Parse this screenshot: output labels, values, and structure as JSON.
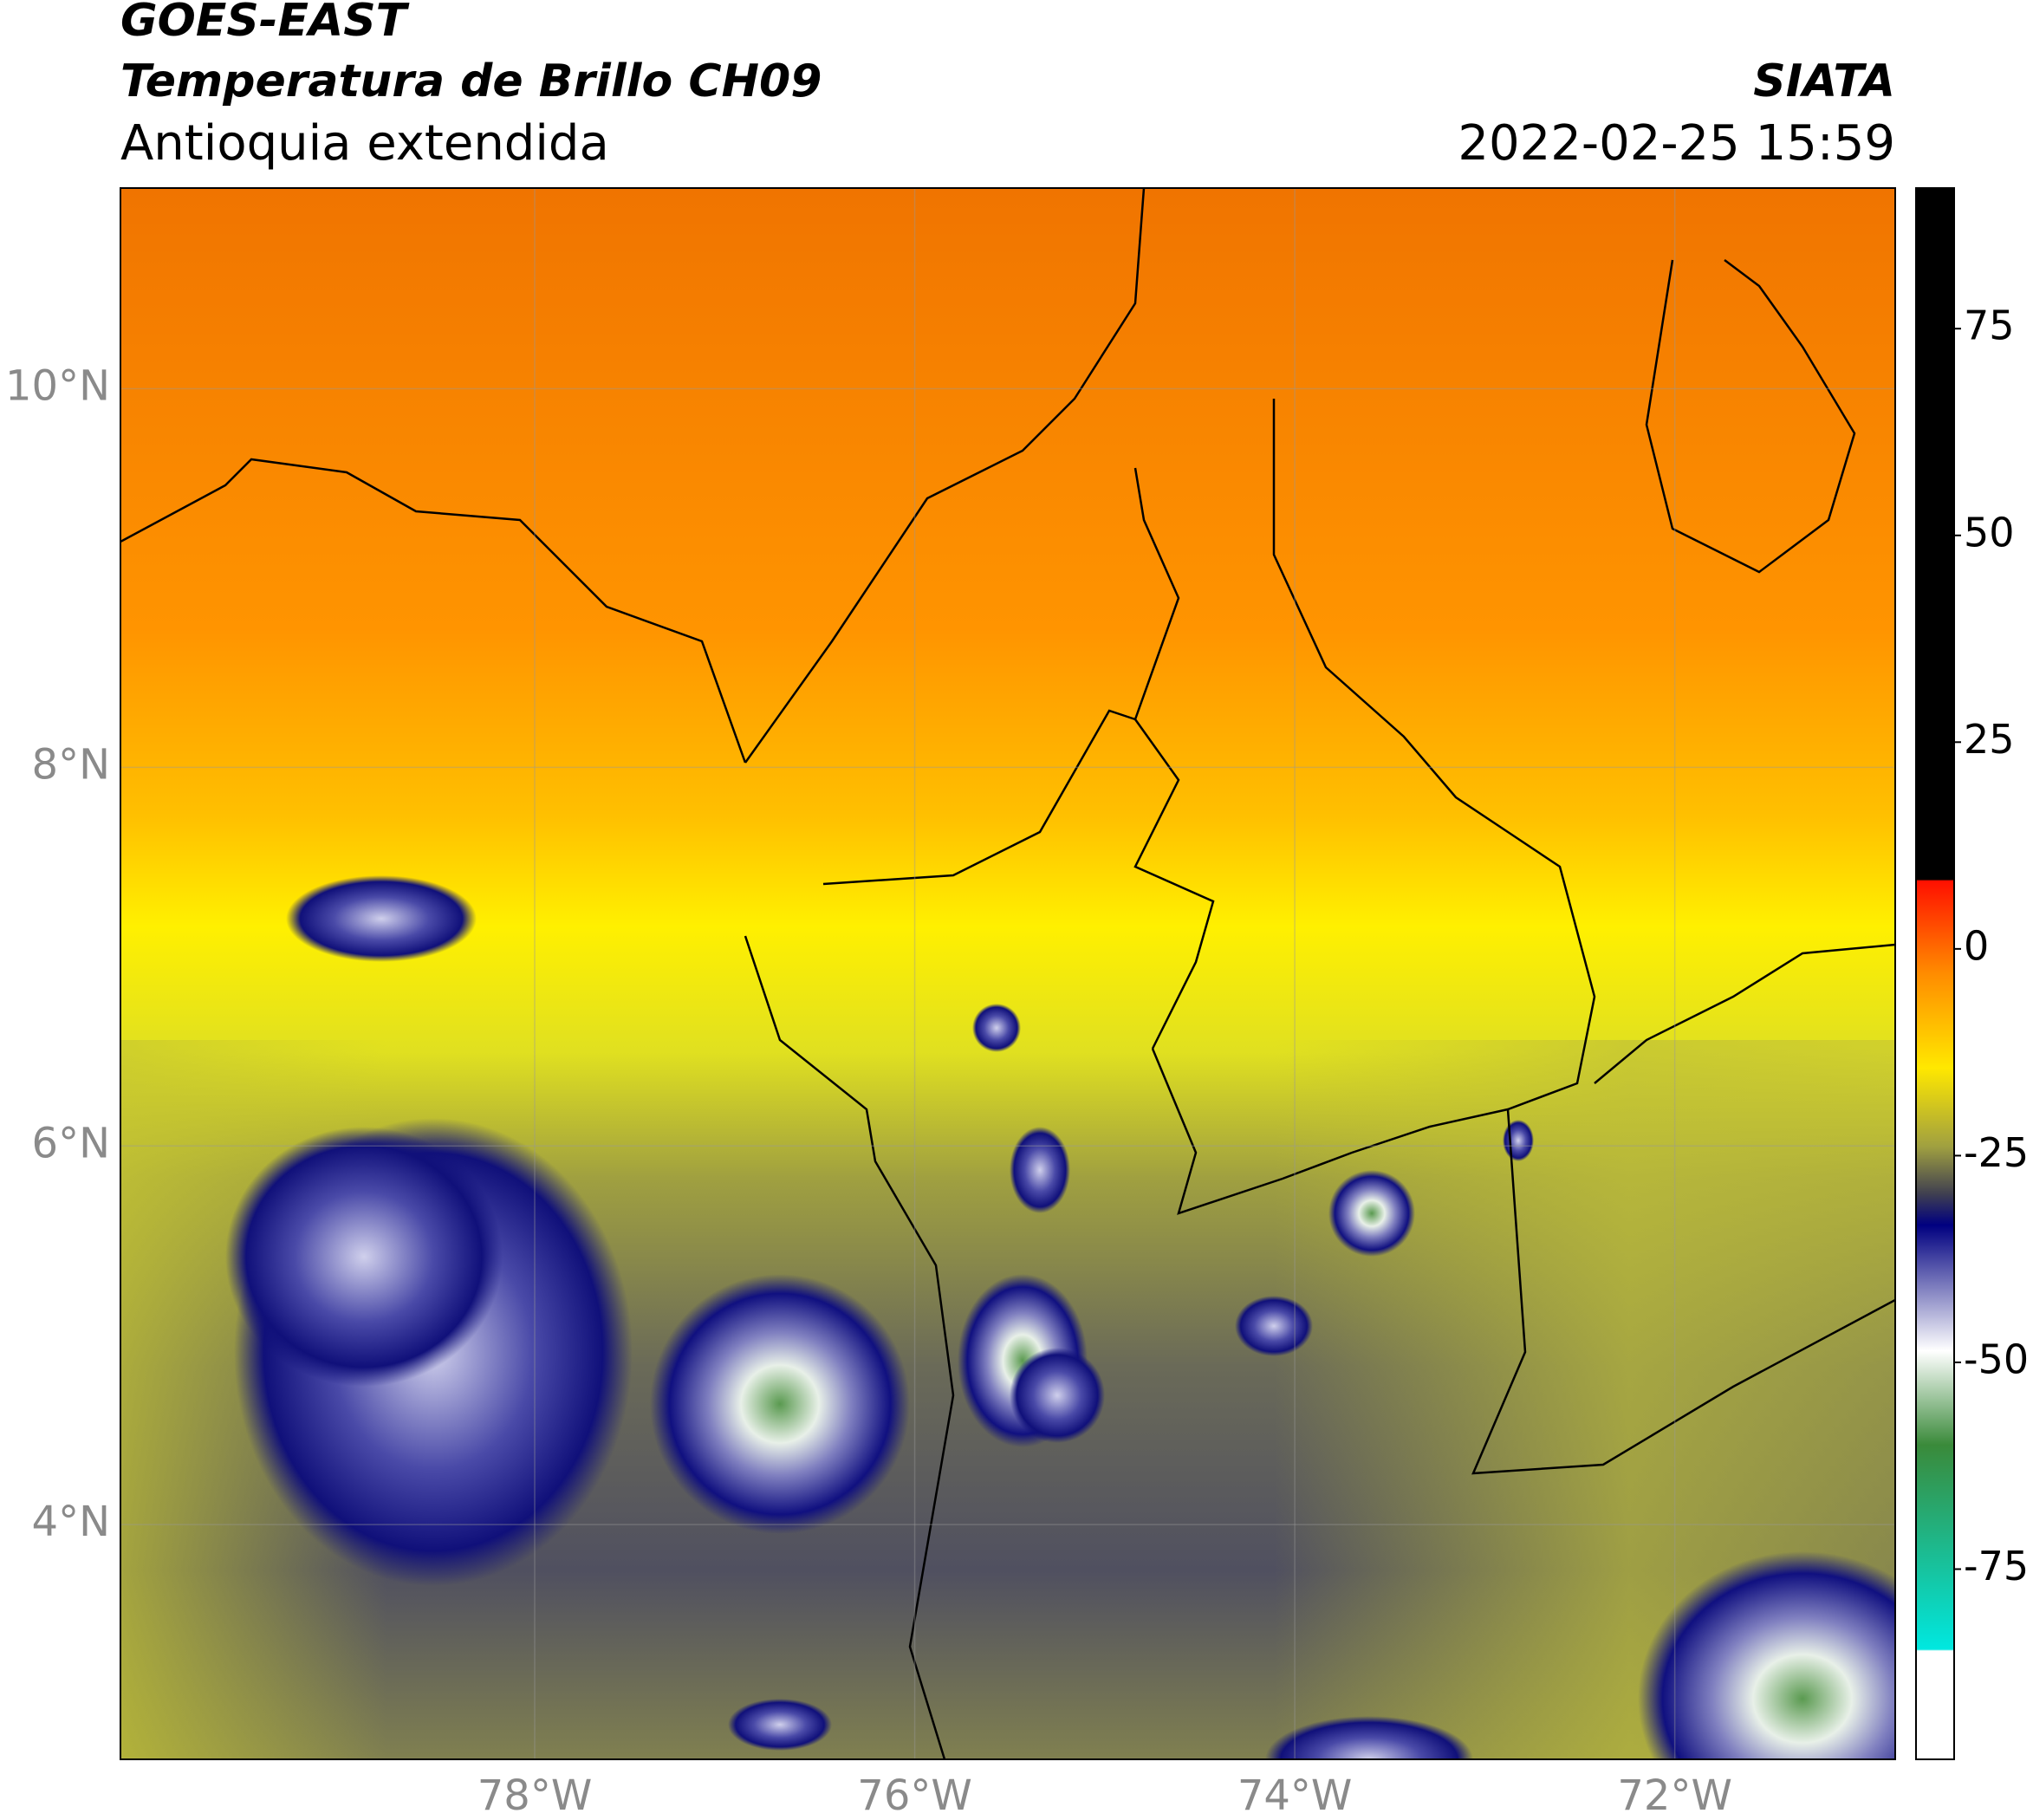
{
  "header": {
    "title": "GOES-EAST",
    "subtitle": "Temperatura de Brillo CH09",
    "region": "Antioquia extendida",
    "source": "SIATA",
    "timestamp": "2022-02-25 15:59"
  },
  "map": {
    "lonlim": [
      -80.18,
      -70.84
    ],
    "latlim": [
      2.76,
      11.06
    ],
    "lonticks": [
      {
        "value": -78,
        "label": "78°W"
      },
      {
        "value": -76,
        "label": "76°W"
      },
      {
        "value": -74,
        "label": "74°W"
      },
      {
        "value": -72,
        "label": "72°W"
      }
    ],
    "latticks": [
      {
        "value": 10,
        "label": "10°N"
      },
      {
        "value": 8,
        "label": "8°N"
      },
      {
        "value": 6,
        "label": "6°N"
      },
      {
        "value": 4,
        "label": "4°N"
      }
    ],
    "grid": true
  },
  "colorbar": {
    "lim": [
      -98,
      92
    ],
    "ticks": [
      75,
      50,
      25,
      0,
      -25,
      -50,
      -75
    ]
  }
}
